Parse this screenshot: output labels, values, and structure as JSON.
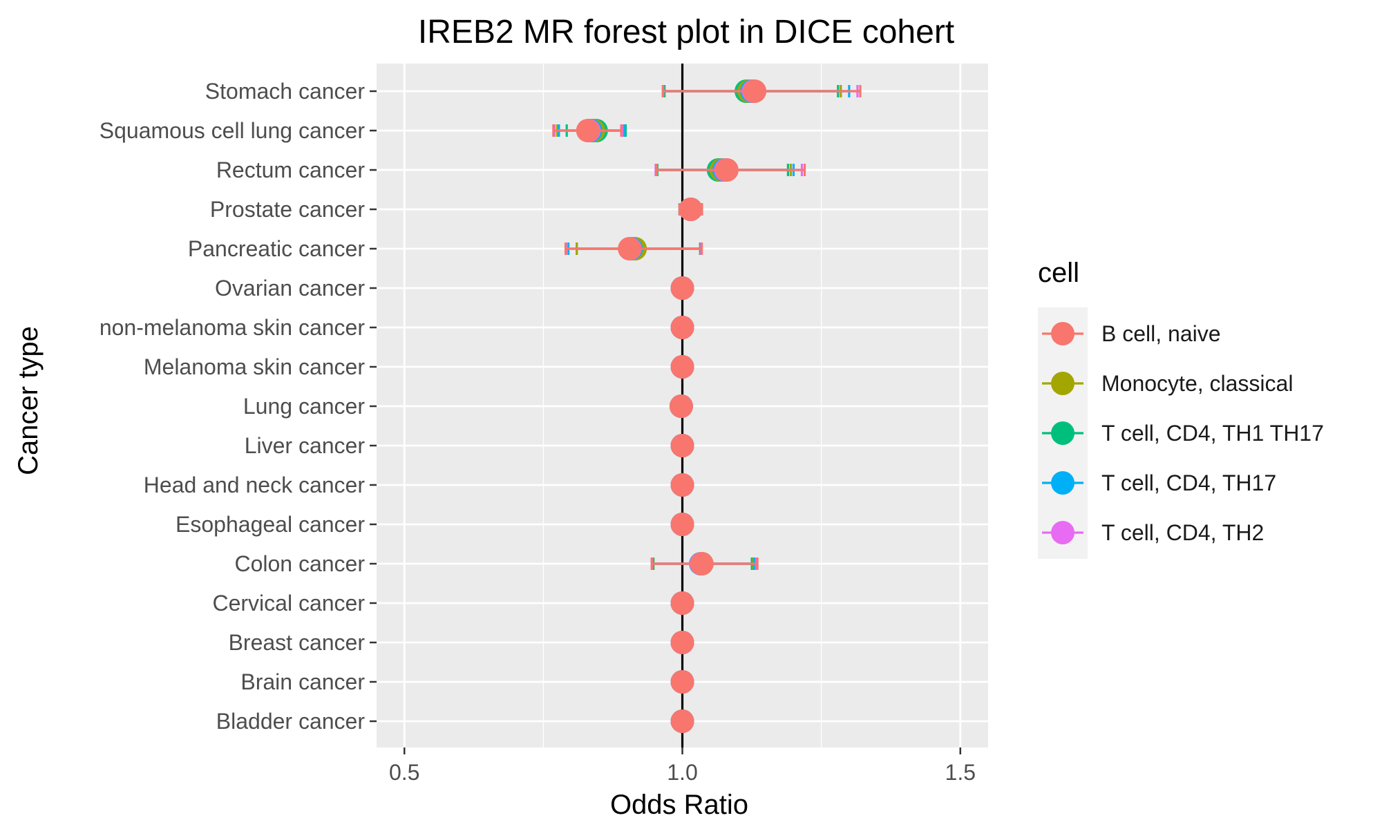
{
  "chart_data": {
    "type": "forest",
    "title": "IREB2 MR forest plot in DICE cohert",
    "xlabel": "Odds Ratio",
    "ylabel": "Cancer type",
    "xlim": [
      0.45,
      1.55
    ],
    "x_ticks": [
      0.5,
      1.0,
      1.5
    ],
    "x_tick_labels": [
      "0.5",
      "1.0",
      "1.5"
    ],
    "reference_line": 1.0,
    "grid": true,
    "legend_title": "cell",
    "legend_position": "right",
    "categories": [
      "Stomach cancer",
      "Squamous cell lung cancer",
      "Rectum cancer",
      "Prostate cancer",
      "Pancreatic cancer",
      "Ovarian cancer",
      "non-melanoma skin cancer",
      "Melanoma skin cancer",
      "Lung cancer",
      "Liver cancer",
      "Head and neck cancer",
      "Esophageal cancer",
      "Colon cancer",
      "Cervical cancer",
      "Breast cancer",
      "Brain cancer",
      "Bladder cancer"
    ],
    "series": [
      {
        "name": "B cell, naive",
        "color": "#F8766D",
        "or": [
          1.13,
          0.83,
          1.08,
          1.015,
          0.905,
          1.0,
          1.0,
          1.0,
          0.998,
          1.0,
          1.0,
          1.0,
          1.035,
          1.0,
          1.0,
          1.0,
          1.0
        ],
        "lower": [
          0.965,
          0.768,
          0.953,
          0.995,
          0.79,
          1.0,
          1.0,
          1.0,
          0.997,
          1.0,
          1.0,
          1.0,
          0.945,
          1.0,
          1.0,
          1.0,
          1.0
        ],
        "upper": [
          1.32,
          0.89,
          1.22,
          1.035,
          1.035,
          1.0,
          1.0,
          1.0,
          0.999,
          1.0,
          1.0,
          1.0,
          1.135,
          1.0,
          1.0,
          1.0,
          1.0
        ]
      },
      {
        "name": "Monocyte, classical",
        "color": "#A3A500",
        "or": [
          1.12,
          0.84,
          1.07,
          1.015,
          0.915,
          1.0,
          1.0,
          1.0,
          0.998,
          1.0,
          1.0,
          1.0,
          1.035,
          1.0,
          1.0,
          1.0,
          1.0
        ],
        "lower": [
          0.967,
          0.775,
          0.954,
          0.995,
          0.81,
          1.0,
          1.0,
          1.0,
          0.997,
          1.0,
          1.0,
          1.0,
          0.947,
          1.0,
          1.0,
          1.0,
          1.0
        ],
        "upper": [
          1.285,
          0.893,
          1.195,
          1.035,
          1.032,
          1.0,
          1.0,
          1.0,
          0.999,
          1.0,
          1.0,
          1.0,
          1.128,
          1.0,
          1.0,
          1.0,
          1.0
        ]
      },
      {
        "name": "T cell, CD4, TH1 TH17",
        "color": "#00BF7D",
        "or": [
          1.115,
          0.845,
          1.065,
          1.015,
          0.91,
          1.0,
          1.0,
          1.0,
          0.998,
          1.0,
          1.0,
          1.0,
          1.035,
          1.0,
          1.0,
          1.0,
          1.0
        ],
        "lower": [
          0.968,
          0.792,
          0.955,
          0.995,
          0.81,
          1.0,
          1.0,
          1.0,
          0.997,
          1.0,
          1.0,
          1.0,
          0.948,
          1.0,
          1.0,
          1.0,
          1.0
        ],
        "upper": [
          1.28,
          0.898,
          1.19,
          1.035,
          1.032,
          1.0,
          1.0,
          1.0,
          0.999,
          1.0,
          1.0,
          1.0,
          1.125,
          1.0,
          1.0,
          1.0,
          1.0
        ]
      },
      {
        "name": "T cell, CD4, TH17",
        "color": "#00B0F6",
        "or": [
          1.125,
          0.835,
          1.075,
          1.015,
          0.908,
          1.0,
          1.0,
          1.0,
          0.998,
          1.0,
          1.0,
          1.0,
          1.033,
          1.0,
          1.0,
          1.0,
          1.0
        ],
        "lower": [
          0.966,
          0.778,
          0.953,
          0.995,
          0.795,
          1.0,
          1.0,
          1.0,
          0.997,
          1.0,
          1.0,
          1.0,
          0.946,
          1.0,
          1.0,
          1.0,
          1.0
        ],
        "upper": [
          1.3,
          0.895,
          1.2,
          1.035,
          1.033,
          1.0,
          1.0,
          1.0,
          0.999,
          1.0,
          1.0,
          1.0,
          1.13,
          1.0,
          1.0,
          1.0,
          1.0
        ]
      },
      {
        "name": "T cell, CD4, TH2",
        "color": "#E76BF3",
        "or": [
          1.128,
          0.832,
          1.078,
          1.015,
          0.906,
          1.0,
          1.0,
          1.0,
          0.998,
          1.0,
          1.0,
          1.0,
          1.034,
          1.0,
          1.0,
          1.0,
          1.0
        ],
        "lower": [
          0.965,
          0.77,
          0.952,
          0.995,
          0.792,
          1.0,
          1.0,
          1.0,
          0.997,
          1.0,
          1.0,
          1.0,
          0.945,
          1.0,
          1.0,
          1.0,
          1.0
        ],
        "upper": [
          1.315,
          0.892,
          1.215,
          1.035,
          1.034,
          1.0,
          1.0,
          1.0,
          0.999,
          1.0,
          1.0,
          1.0,
          1.133,
          1.0,
          1.0,
          1.0,
          1.0
        ]
      }
    ],
    "draw_order": [
      2,
      1,
      3,
      4,
      0
    ]
  }
}
